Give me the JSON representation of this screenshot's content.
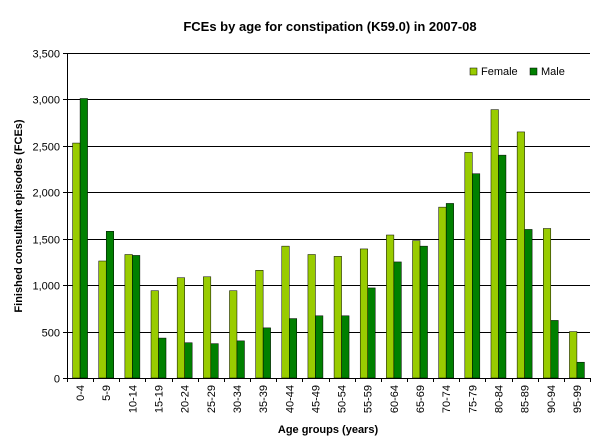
{
  "chart_data": {
    "type": "bar",
    "title": "FCEs by age for constipation (K59.0) in 2007-08",
    "xlabel": "Age groups (years)",
    "ylabel": "Finished consultant episodes (FCEs)",
    "ylim": [
      0,
      3500
    ],
    "yticks": [
      0,
      500,
      1000,
      1500,
      2000,
      2500,
      3000,
      3500
    ],
    "ytick_labels": [
      "0",
      "500",
      "1,000",
      "1,500",
      "2,000",
      "2,500",
      "3,000",
      "3,500"
    ],
    "grid": true,
    "legend_position": "top-right",
    "categories": [
      "0-4",
      "5-9",
      "10-14",
      "15-19",
      "20-24",
      "25-29",
      "30-34",
      "35-39",
      "40-44",
      "45-49",
      "50-54",
      "55-59",
      "60-64",
      "65-69",
      "70-74",
      "75-79",
      "80-84",
      "85-89",
      "90-94",
      "95-99"
    ],
    "series": [
      {
        "name": "Female",
        "color": "#99cc00",
        "values": [
          2530,
          1260,
          1330,
          940,
          1080,
          1090,
          940,
          1160,
          1420,
          1330,
          1310,
          1390,
          1540,
          1480,
          1840,
          2430,
          2890,
          2650,
          1610,
          500
        ]
      },
      {
        "name": "Male",
        "color": "#008000",
        "values": [
          3010,
          1580,
          1320,
          430,
          380,
          370,
          400,
          540,
          640,
          670,
          670,
          970,
          1250,
          1420,
          1880,
          2200,
          2400,
          1600,
          620,
          170
        ]
      }
    ]
  }
}
